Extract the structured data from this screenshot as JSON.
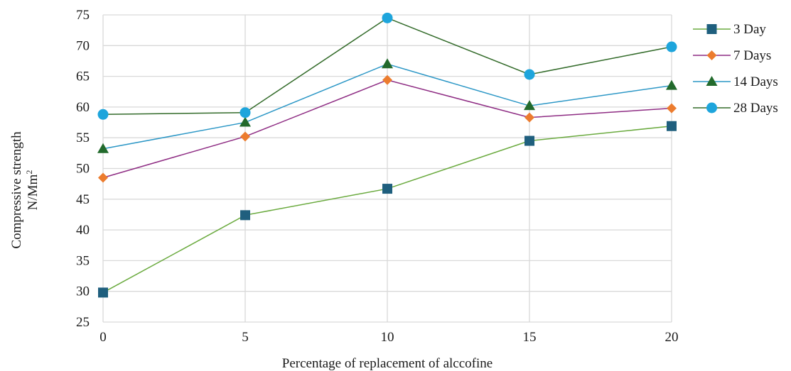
{
  "chart_data": {
    "type": "line",
    "title": "",
    "xlabel": "Percentage of replacement of alccofine",
    "ylabel_line1": "Compressive strength",
    "ylabel_line2": "N/Mm",
    "ylabel_superscript": "2",
    "x": [
      0,
      5,
      10,
      15,
      20
    ],
    "x_tick_labels": [
      "0",
      "5",
      "10",
      "15",
      "20"
    ],
    "ylim": [
      25,
      75
    ],
    "y_ticks": [
      25,
      30,
      35,
      40,
      45,
      50,
      55,
      60,
      65,
      70,
      75
    ],
    "grid": true,
    "legend_position": "right",
    "series": [
      {
        "name": "3 Day",
        "values": [
          29.8,
          42.4,
          46.7,
          54.5,
          56.9
        ],
        "color": "#6aaa3e",
        "marker": "square",
        "marker_color": "#1f5f7e"
      },
      {
        "name": "7 Days",
        "values": [
          48.5,
          55.2,
          64.4,
          58.3,
          59.8
        ],
        "color": "#8e2c83",
        "marker": "diamond",
        "marker_color": "#ec7c2e"
      },
      {
        "name": "14 Days",
        "values": [
          53.2,
          57.5,
          67.0,
          60.2,
          63.5
        ],
        "color": "#2c97c6",
        "marker": "triangle",
        "marker_color": "#226a2c"
      },
      {
        "name": "28 Days",
        "values": [
          58.8,
          59.1,
          74.5,
          65.3,
          69.8
        ],
        "color": "#336b2a",
        "marker": "circle",
        "marker_color": "#1ea5dc"
      }
    ]
  }
}
